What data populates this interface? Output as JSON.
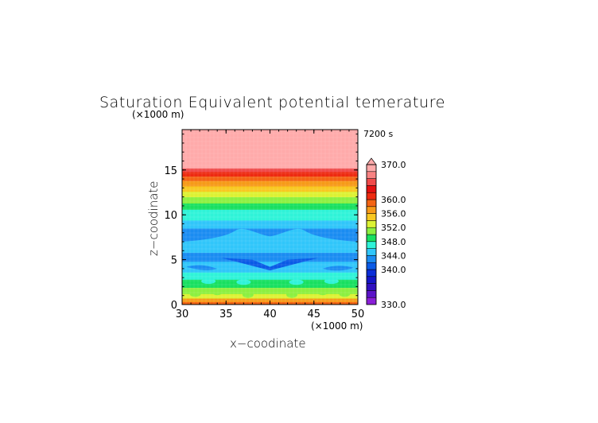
{
  "chart_data": {
    "type": "heatmap",
    "title": "Saturation Equivalent potential temerature",
    "time_label": "7200 s",
    "xlabel": "x−coodinate",
    "ylabel": "z−coodinate",
    "x_unit": "(×1000 m)",
    "y_unit": "(×1000 m)",
    "xlim": [
      30,
      50
    ],
    "ylim": [
      0,
      19.5
    ],
    "x_ticks": [
      "30",
      "35",
      "40",
      "45",
      "50"
    ],
    "y_ticks": [
      "0",
      "5",
      "10",
      "15"
    ],
    "colorbar": {
      "range": [
        330,
        370
      ],
      "tick_labels": [
        "370.0",
        "360.0",
        "356.0",
        "352.0",
        "348.0",
        "344.0",
        "340.0",
        "330.0"
      ],
      "levels": [
        {
          "from": 330,
          "to": 332,
          "color": "#8a1fd8"
        },
        {
          "from": 332,
          "to": 334,
          "color": "#5b13c8"
        },
        {
          "from": 334,
          "to": 336,
          "color": "#3010c0"
        },
        {
          "from": 336,
          "to": 338,
          "color": "#1515c8"
        },
        {
          "from": 338,
          "to": 340,
          "color": "#0b2dd8"
        },
        {
          "from": 340,
          "to": 342,
          "color": "#0a5ae6"
        },
        {
          "from": 342,
          "to": 344,
          "color": "#1a8cf2"
        },
        {
          "from": 344,
          "to": 346,
          "color": "#30c6fa"
        },
        {
          "from": 346,
          "to": 348,
          "color": "#2ff3d8"
        },
        {
          "from": 348,
          "to": 350,
          "color": "#18e060"
        },
        {
          "from": 350,
          "to": 352,
          "color": "#8cf040"
        },
        {
          "from": 352,
          "to": 354,
          "color": "#dcf233"
        },
        {
          "from": 354,
          "to": 356,
          "color": "#f8c820"
        },
        {
          "from": 356,
          "to": 358,
          "color": "#f79a18"
        },
        {
          "from": 358,
          "to": 360,
          "color": "#f46414"
        },
        {
          "from": 360,
          "to": 362,
          "color": "#ee2a10"
        },
        {
          "from": 362,
          "to": 364,
          "color": "#e41010"
        },
        {
          "from": 364,
          "to": 366,
          "color": "#f04a4a"
        },
        {
          "from": 366,
          "to": 368,
          "color": "#f88282"
        },
        {
          "from": 368,
          "to": 370,
          "color": "#ffaaaa"
        }
      ],
      "extend_color": "#ffaaaa"
    },
    "field": {
      "description_free": true,
      "z_bands": [
        {
          "z0": 0.0,
          "z1": 0.3,
          "value": 359
        },
        {
          "z0": 0.3,
          "z1": 0.7,
          "value": 357
        },
        {
          "z0": 0.7,
          "z1": 1.2,
          "value": 353
        },
        {
          "z0": 1.2,
          "z1": 1.9,
          "value": 351
        },
        {
          "z0": 1.9,
          "z1": 2.8,
          "value": 349
        },
        {
          "z0": 2.8,
          "z1": 3.6,
          "value": 347
        },
        {
          "z0": 3.6,
          "z1": 4.8,
          "value": 345
        },
        {
          "z0": 4.8,
          "z1": 5.8,
          "value": 343
        },
        {
          "z0": 5.8,
          "z1": 6.6,
          "value": 345
        },
        {
          "z0": 6.6,
          "z1": 8.5,
          "value": 343
        },
        {
          "z0": 8.5,
          "z1": 9.4,
          "value": 345
        },
        {
          "z0": 9.4,
          "z1": 10.6,
          "value": 347
        },
        {
          "z0": 10.6,
          "z1": 11.3,
          "value": 349
        },
        {
          "z0": 11.3,
          "z1": 12.0,
          "value": 351
        },
        {
          "z0": 12.0,
          "z1": 12.6,
          "value": 353
        },
        {
          "z0": 12.6,
          "z1": 13.2,
          "value": 355
        },
        {
          "z0": 13.2,
          "z1": 13.8,
          "value": 357
        },
        {
          "z0": 13.8,
          "z1": 14.3,
          "value": 359
        },
        {
          "z0": 14.3,
          "z1": 14.8,
          "value": 361
        },
        {
          "z0": 14.8,
          "z1": 15.2,
          "value": 365
        },
        {
          "z0": 15.2,
          "z1": 19.5,
          "value": 369
        }
      ]
    }
  }
}
